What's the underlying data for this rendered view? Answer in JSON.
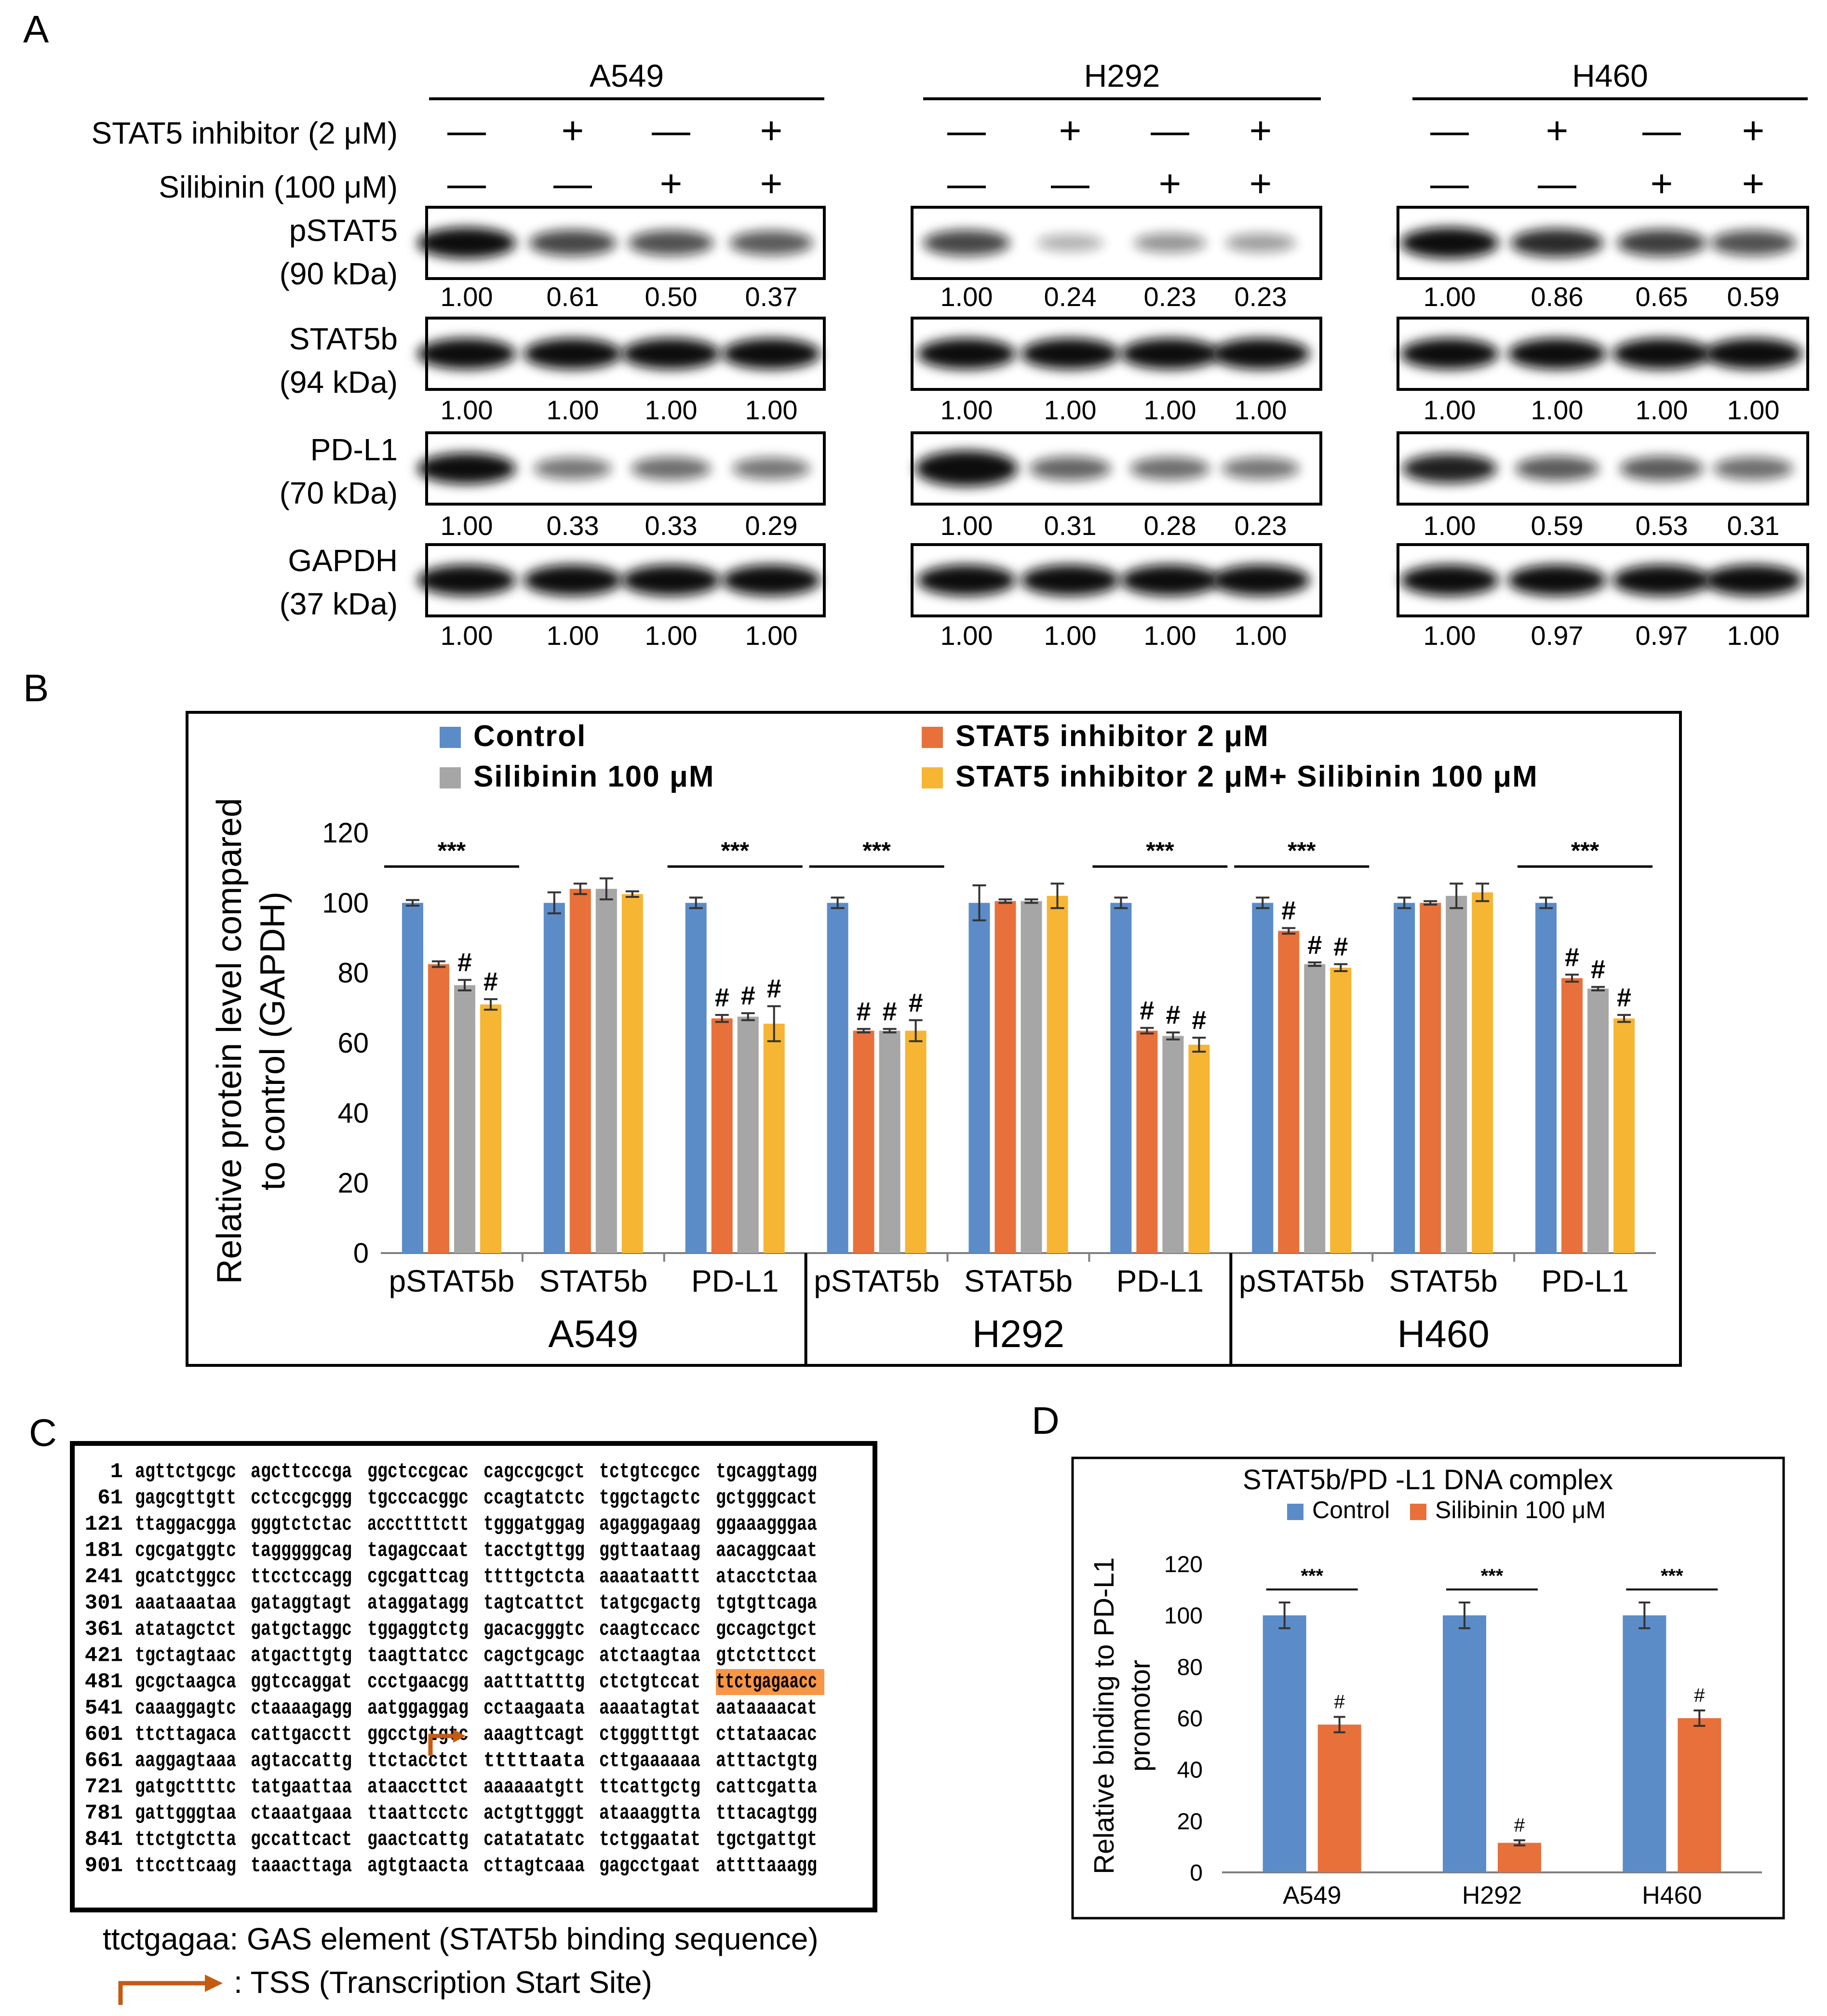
{
  "panel_letters": {
    "a": "A",
    "b": "B",
    "c": "C",
    "d": "D"
  },
  "colors": {
    "control": "#5b8cc8",
    "stat5": "#e8703a",
    "silibinin": "#a6a6a6",
    "combo": "#f7b534",
    "tss_arrow": "#c55a11",
    "gas_highlight": "#f79646"
  },
  "panel_a": {
    "cell_lines": [
      "A549",
      "H292",
      "H460"
    ],
    "condition_labels": {
      "stat5_inhibitor": "STAT5 inhibitor (2 μM)",
      "silibinin": "Silibinin (100 μM)"
    },
    "stat5_inhibitor_signs": [
      "—",
      "+",
      "—",
      "+"
    ],
    "silibinin_signs": [
      "—",
      "—",
      "+",
      "+"
    ],
    "blot_labels": [
      {
        "name": "pSTAT5",
        "kda": "(90 kDa)"
      },
      {
        "name": "STAT5b",
        "kda": "(94 kDa)"
      },
      {
        "name": "PD-L1",
        "kda": "(70 kDa)"
      },
      {
        "name": "GAPDH",
        "kda": "(37 kDa)"
      }
    ],
    "densitometry": {
      "A549": [
        [
          "1.00",
          "0.61",
          "0.50",
          "0.37"
        ],
        [
          "1.00",
          "1.00",
          "1.00",
          "1.00"
        ],
        [
          "1.00",
          "0.33",
          "0.33",
          "0.29"
        ],
        [
          "1.00",
          "1.00",
          "1.00",
          "1.00"
        ]
      ],
      "H292": [
        [
          "1.00",
          "0.24",
          "0.23",
          "0.23"
        ],
        [
          "1.00",
          "1.00",
          "1.00",
          "1.00"
        ],
        [
          "1.00",
          "0.31",
          "0.28",
          "0.23"
        ],
        [
          "1.00",
          "1.00",
          "1.00",
          "1.00"
        ]
      ],
      "H460": [
        [
          "1.00",
          "0.86",
          "0.65",
          "0.59"
        ],
        [
          "1.00",
          "1.00",
          "1.00",
          "1.00"
        ],
        [
          "1.00",
          "0.59",
          "0.53",
          "0.31"
        ],
        [
          "1.00",
          "0.97",
          "0.97",
          "1.00"
        ]
      ]
    }
  },
  "chart_data": [
    {
      "type": "bar",
      "title": "",
      "ylabel": "Relative protein level compared to control (GAPDH)",
      "ylim": [
        0,
        120
      ],
      "yticks": [
        0,
        20,
        40,
        60,
        80,
        100,
        120
      ],
      "legend": "top",
      "groups": [
        "A549",
        "H292",
        "H460"
      ],
      "categories": [
        "pSTAT5b",
        "STAT5b",
        "PD-L1",
        "pSTAT5b",
        "STAT5b",
        "PD-L1",
        "pSTAT5b",
        "STAT5b",
        "PD-L1"
      ],
      "series": [
        {
          "name": "Control",
          "values": [
            100,
            100,
            100,
            100,
            100,
            100,
            100,
            100,
            100
          ],
          "errors": [
            0.8,
            3,
            1.5,
            1.5,
            5,
            1.5,
            1.5,
            1.5,
            1.5
          ]
        },
        {
          "name": "STAT5 inhibitor 2 μM",
          "values": [
            82.5,
            104,
            67,
            63.5,
            100.5,
            63.5,
            92,
            100,
            78.5
          ],
          "errors": [
            0.8,
            1.5,
            1,
            0.5,
            0.5,
            0.8,
            0.8,
            0.5,
            1
          ]
        },
        {
          "name": "Silibinin 100 μM",
          "values": [
            76.5,
            104,
            67.5,
            63.5,
            100.5,
            62,
            82.5,
            102,
            75.5
          ],
          "errors": [
            1.5,
            3,
            1,
            0.5,
            0.5,
            1,
            0.5,
            3.5,
            0.5
          ]
        },
        {
          "name": "STAT5 inhibitor 2 μM+ Silibinin 100 μM",
          "values": [
            71,
            102.5,
            65.5,
            63.5,
            102,
            59.5,
            81.5,
            103,
            67
          ],
          "errors": [
            1.5,
            0.8,
            5,
            3,
            3.5,
            2,
            1,
            2.5,
            1
          ]
        }
      ],
      "significance": {
        "bracket_label": "***",
        "bracket_categories": [
          0,
          2,
          3,
          5,
          6,
          8
        ],
        "hash_label": "#",
        "hash_marks": [
          [
            0,
            2
          ],
          [
            0,
            3
          ],
          [
            2,
            1
          ],
          [
            2,
            2
          ],
          [
            2,
            3
          ],
          [
            3,
            1
          ],
          [
            3,
            2
          ],
          [
            3,
            3
          ],
          [
            5,
            1
          ],
          [
            5,
            2
          ],
          [
            5,
            3
          ],
          [
            6,
            1
          ],
          [
            6,
            2
          ],
          [
            6,
            3
          ],
          [
            8,
            1
          ],
          [
            8,
            2
          ],
          [
            8,
            3
          ]
        ]
      }
    },
    {
      "type": "bar",
      "title": "STAT5b/PD -L1 DNA complex",
      "ylabel": "Relative binding to PD-L1 promotor",
      "ylim": [
        0,
        120
      ],
      "yticks": [
        0,
        20,
        40,
        60,
        80,
        100,
        120
      ],
      "legend": "top",
      "categories": [
        "A549",
        "H292",
        "H460"
      ],
      "series": [
        {
          "name": "Control",
          "values": [
            100,
            100,
            100
          ],
          "errors": [
            5,
            5,
            5
          ]
        },
        {
          "name": "Silibinin 100 μM",
          "values": [
            57.5,
            11.5,
            60
          ],
          "errors": [
            3,
            1,
            3
          ]
        }
      ],
      "significance": {
        "bracket_label": "***",
        "hash_label": "#"
      }
    }
  ],
  "panel_c": {
    "sequence_rows": [
      {
        "n": "1",
        "s": [
          "agttctgcgc",
          "agcttcccga",
          "ggctccgcac",
          "cagccgcgct",
          "tctgtccgcc",
          "tgcaggtagg"
        ]
      },
      {
        "n": "61",
        "s": [
          "gagcgttgtt",
          "cctccgcggg",
          "tgcccacggc",
          "ccagtatctc",
          "tggctagctc",
          "gctgggcact"
        ]
      },
      {
        "n": "121",
        "s": [
          "ttaggacgga",
          "gggtctctac",
          "acccttttctt",
          "tgggatggag",
          "agaggagaag",
          "ggaaagggaa"
        ]
      },
      {
        "n": "181",
        "s": [
          "cgcgatggtc",
          "tagggggcag",
          "tagagccaat",
          "tacctgttgg",
          "ggttaataag",
          "aacaggcaat"
        ]
      },
      {
        "n": "241",
        "s": [
          "gcatctggcc",
          "ttcctccagg",
          "cgcgattcag",
          "ttttgctcta",
          "aaaataattt",
          "atacctctaa"
        ]
      },
      {
        "n": "301",
        "s": [
          "aaataaataa",
          "gataggtagt",
          "ataggatagg",
          "tagtcattct",
          "tatgcgactg",
          "tgtgttcaga"
        ]
      },
      {
        "n": "361",
        "s": [
          "atatagctct",
          "gatgctaggc",
          "tggaggtctg",
          "gacacgggtc",
          "caagtccacc",
          "gccagctgct"
        ]
      },
      {
        "n": "421",
        "s": [
          "tgctagtaac",
          "atgacttgtg",
          "taagttatcc",
          "cagctgcagc",
          "atctaagtaa",
          "gtctcttcct"
        ]
      },
      {
        "n": "481",
        "s": [
          "gcgctaagca",
          "ggtccaggat",
          "ccctgaacgg",
          "aatttatttg",
          "ctctgtccat",
          "ttctgagaacc"
        ]
      },
      {
        "n": "541",
        "s": [
          "caaaggagtc",
          "ctaaaagagg",
          "aatggaggag",
          "cctaagaata",
          "aaaatagtat",
          "aataaaacat"
        ]
      },
      {
        "n": "601",
        "s": [
          "ttcttagaca",
          "cattgacctt",
          "ggcctgtgtc",
          "aaagttcagt",
          "ctgggtttgt",
          "cttataacac"
        ]
      },
      {
        "n": "661",
        "s": [
          "aaggagtaaa",
          "agtaccattg",
          "ttctacctct",
          "tttttaata",
          "cttgaaaaaa",
          "atttactgtg"
        ]
      },
      {
        "n": "721",
        "s": [
          "gatgcttttc",
          "tatgaattaa",
          "ataaccttct",
          "aaaaaatgtt",
          "ttcattgctg",
          "cattcgatta"
        ]
      },
      {
        "n": "781",
        "s": [
          "gattgggtaa",
          "ctaaatgaaa",
          "ttaattcctc",
          "actgttgggt",
          "ataaaggtta",
          "tttacagtgg"
        ]
      },
      {
        "n": "841",
        "s": [
          "ttctgtctta",
          "gccattcact",
          "gaactcattg",
          "catatatatc",
          "tctggaatat",
          "tgctgattgt"
        ]
      },
      {
        "n": "901",
        "s": [
          "ttccttcaag",
          "taaacttaga",
          "agtgtaacta",
          "cttagtcaaa",
          "gagcctgaat",
          "attttaaagg"
        ]
      }
    ],
    "legend_gas": "ttctgagaa: GAS element (STAT5b binding sequence)",
    "legend_tss": ": TSS (Transcription Start Site)"
  }
}
